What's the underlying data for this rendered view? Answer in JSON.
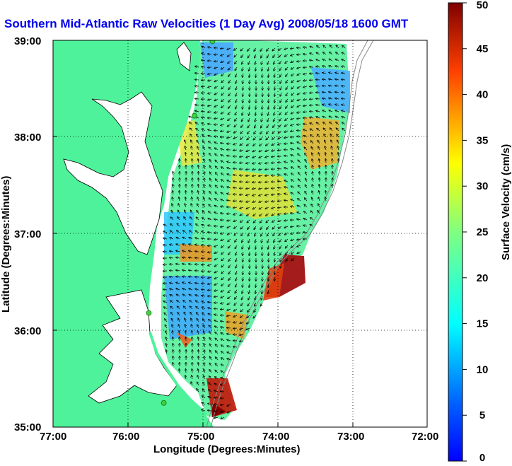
{
  "figure": {
    "title": "Southern Mid-Atlantic Raw Velocities (1 Day Avg) 2008/05/18 1600 GMT",
    "x_axis_label": "Longitude (Degrees:Minutes)",
    "y_axis_label": "Latitude (Degrees:Minutes)",
    "x_ticks": [
      "77:00",
      "76:00",
      "75:00",
      "74:00",
      "73:00",
      "72:00"
    ],
    "y_ticks": [
      "39:00",
      "38:00",
      "37:00",
      "36:00",
      "35:00"
    ],
    "colorbar_label": "Surface Velocity (cm/s)",
    "colorbar_ticks": [
      "0",
      "5",
      "10",
      "15",
      "20",
      "25",
      "30",
      "35",
      "40",
      "45",
      "50"
    ]
  },
  "map": {
    "lon_range": [
      -77,
      -72
    ],
    "lat_range": [
      35,
      39
    ],
    "land_color": "#4ef29a",
    "water_color": "#ffffff",
    "grid": "dotted",
    "velocity_range_cm_s": [
      0,
      50
    ],
    "colormap": "jet",
    "radar_sites": [
      {
        "lon": -74.87,
        "lat": 38.99
      },
      {
        "lon": -75.11,
        "lat": 38.22
      },
      {
        "lon": -75.72,
        "lat": 36.18
      },
      {
        "lon": -75.52,
        "lat": 35.25
      }
    ]
  }
}
